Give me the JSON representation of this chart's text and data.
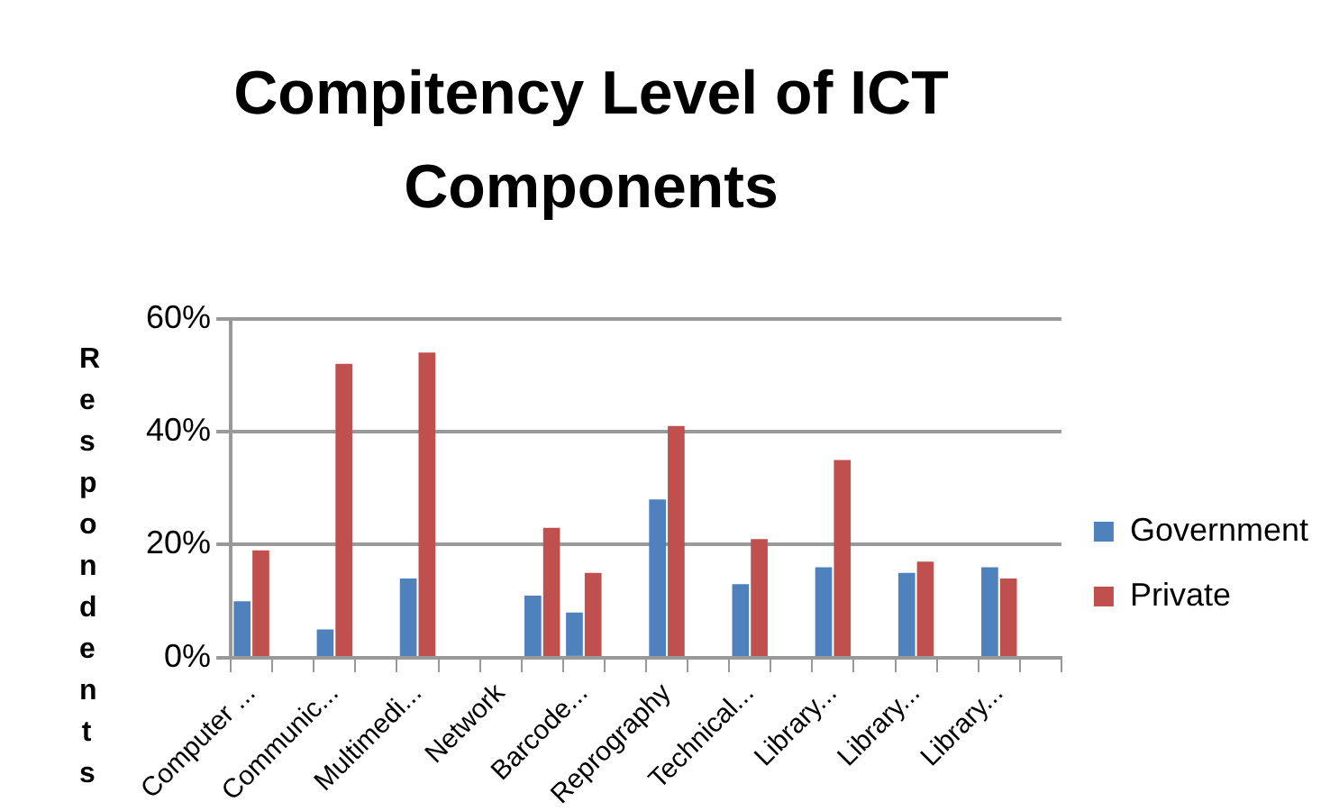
{
  "chart_data": {
    "type": "bar",
    "title": "Compitency Level of ICT Components",
    "ylabel": "Respondents",
    "categories": [
      "Computer ...",
      null,
      "Communic...",
      null,
      "Multimedi...",
      null,
      "Network",
      null,
      "Barcode...",
      null,
      "Reprography",
      null,
      "Technical...",
      null,
      "Library...",
      null,
      "Library...",
      null,
      "Library...",
      null
    ],
    "series": [
      {
        "name": "Government",
        "color": "#4f81bd",
        "values": [
          10,
          null,
          5,
          null,
          14,
          null,
          null,
          11,
          8,
          null,
          28,
          null,
          13,
          null,
          16,
          null,
          15,
          null,
          16,
          null
        ]
      },
      {
        "name": "Private",
        "color": "#c0504d",
        "values": [
          19,
          null,
          52,
          null,
          54,
          null,
          null,
          23,
          15,
          null,
          41,
          null,
          21,
          null,
          35,
          null,
          17,
          null,
          14,
          null
        ]
      }
    ],
    "ylim": [
      0,
      60
    ],
    "yticks": [
      {
        "value": 0,
        "label": "0%"
      },
      {
        "value": 20,
        "label": "20%"
      },
      {
        "value": 40,
        "label": "40%"
      },
      {
        "value": 60,
        "label": "60%"
      }
    ],
    "grid": "y",
    "legend": "right"
  }
}
